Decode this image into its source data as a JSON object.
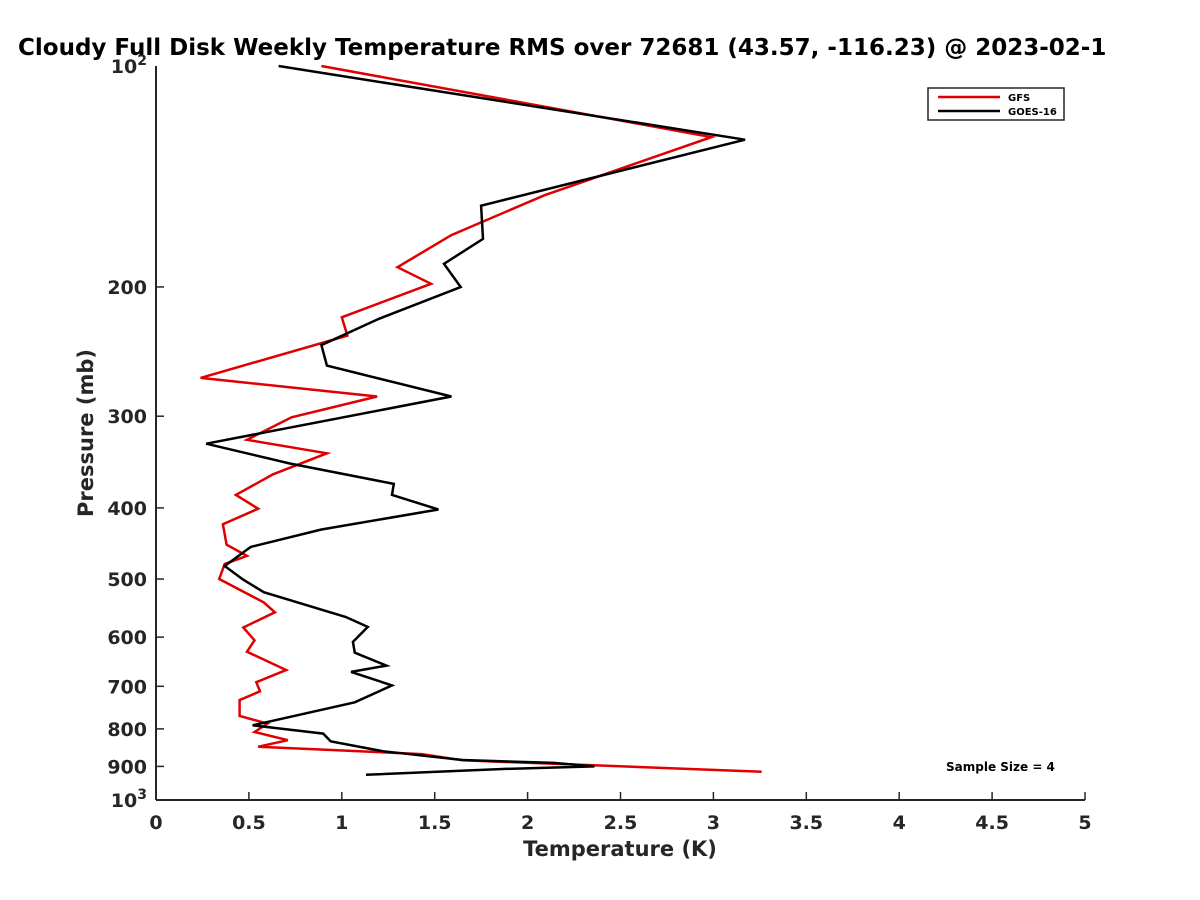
{
  "chart_data": {
    "type": "line",
    "title": "Cloudy Full Disk Weekly Temperature RMS over 72681 (43.57, -116.23) @ 2023-02-1",
    "xlabel": "Temperature (K)",
    "ylabel": "Pressure (mb)",
    "xlim": [
      0,
      5
    ],
    "ylim": [
      100,
      1000
    ],
    "y_scale": "log",
    "y_reversed": true,
    "x_ticks": [
      "0",
      "0.5",
      "1",
      "1.5",
      "2",
      "2.5",
      "3",
      "3.5",
      "4",
      "4.5",
      "5"
    ],
    "y_ticks": [
      {
        "value": 100,
        "base": "10",
        "exp": "2"
      },
      {
        "value": 200,
        "label": "200"
      },
      {
        "value": 300,
        "label": "300"
      },
      {
        "value": 400,
        "label": "400"
      },
      {
        "value": 500,
        "label": "500"
      },
      {
        "value": 600,
        "label": "600"
      },
      {
        "value": 700,
        "label": "700"
      },
      {
        "value": 800,
        "label": "800"
      },
      {
        "value": 900,
        "label": "900"
      },
      {
        "value": 1000,
        "base": "10",
        "exp": "3"
      }
    ],
    "grid": false,
    "legend_position": "top-right",
    "annotation": "Sample Size = 4",
    "series": [
      {
        "name": "GFS",
        "color": "#e00000",
        "points": [
          [
            0.89,
            100
          ],
          [
            2.99,
            125
          ],
          [
            2.09,
            150
          ],
          [
            1.59,
            170
          ],
          [
            1.3,
            188
          ],
          [
            1.48,
            198
          ],
          [
            1.0,
            220
          ],
          [
            1.03,
            233
          ],
          [
            0.24,
            266
          ],
          [
            1.19,
            282
          ],
          [
            0.73,
            301
          ],
          [
            0.49,
            323
          ],
          [
            0.92,
            337
          ],
          [
            0.63,
            360
          ],
          [
            0.43,
            384
          ],
          [
            0.55,
            401
          ],
          [
            0.36,
            421
          ],
          [
            0.38,
            449
          ],
          [
            0.49,
            465
          ],
          [
            0.37,
            477
          ],
          [
            0.34,
            500
          ],
          [
            0.58,
            538
          ],
          [
            0.64,
            555
          ],
          [
            0.47,
            582
          ],
          [
            0.53,
            606
          ],
          [
            0.49,
            628
          ],
          [
            0.7,
            665
          ],
          [
            0.54,
            691
          ],
          [
            0.56,
            711
          ],
          [
            0.45,
            731
          ],
          [
            0.45,
            750
          ],
          [
            0.45,
            768
          ],
          [
            0.6,
            787
          ],
          [
            0.53,
            808
          ],
          [
            0.71,
            829
          ],
          [
            0.55,
            846
          ],
          [
            1.43,
            866
          ],
          [
            1.65,
            883
          ],
          [
            3.26,
            915
          ]
        ]
      },
      {
        "name": "GOES-16",
        "color": "#000000",
        "points": [
          [
            0.66,
            100
          ],
          [
            3.17,
            126
          ],
          [
            1.75,
            155
          ],
          [
            1.76,
            172
          ],
          [
            1.55,
            186
          ],
          [
            1.64,
            200
          ],
          [
            1.2,
            221
          ],
          [
            0.89,
            240
          ],
          [
            0.92,
            256
          ],
          [
            1.59,
            282
          ],
          [
            0.27,
            327
          ],
          [
            0.72,
            348
          ],
          [
            1.28,
            371
          ],
          [
            1.27,
            384
          ],
          [
            1.52,
            402
          ],
          [
            0.89,
            428
          ],
          [
            0.51,
            452
          ],
          [
            0.37,
            480
          ],
          [
            0.47,
            501
          ],
          [
            0.58,
            521
          ],
          [
            1.02,
            563
          ],
          [
            1.14,
            581
          ],
          [
            1.06,
            609
          ],
          [
            1.07,
            630
          ],
          [
            1.24,
            656
          ],
          [
            1.05,
            669
          ],
          [
            1.27,
            698
          ],
          [
            1.07,
            736
          ],
          [
            0.52,
            791
          ],
          [
            0.9,
            812
          ],
          [
            0.94,
            832
          ],
          [
            1.22,
            858
          ],
          [
            1.65,
            882
          ],
          [
            2.14,
            890
          ],
          [
            2.36,
            900
          ],
          [
            1.88,
            907
          ],
          [
            1.13,
            924
          ]
        ]
      }
    ]
  }
}
